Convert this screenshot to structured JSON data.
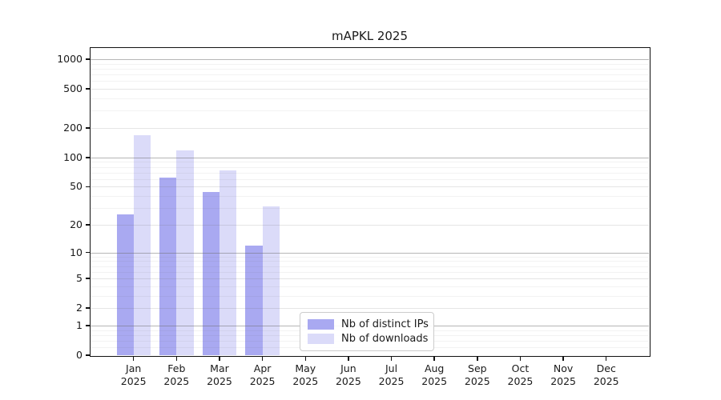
{
  "chart_data": {
    "type": "bar",
    "title": "mAPKL 2025",
    "categories": [
      "Jan",
      "Feb",
      "Mar",
      "Apr",
      "May",
      "Jun",
      "Jul",
      "Aug",
      "Sep",
      "Oct",
      "Nov",
      "Dec"
    ],
    "category_year": "2025",
    "series": [
      {
        "name": "Nb of distinct IPs",
        "color": "#a9a9f1",
        "values": [
          26,
          62,
          44,
          12,
          0,
          0,
          0,
          0,
          0,
          0,
          0,
          0
        ]
      },
      {
        "name": "Nb of downloads",
        "color": "#dbdbf9",
        "values": [
          170,
          118,
          74,
          31,
          0,
          0,
          0,
          0,
          0,
          0,
          0,
          0
        ]
      }
    ],
    "yaxis": {
      "scale": "log1p",
      "tick_values": [
        0,
        1,
        2,
        5,
        10,
        20,
        50,
        100,
        200,
        500,
        1000
      ],
      "tick_labels": [
        "0",
        "1",
        "2",
        "5",
        "10",
        "20",
        "50",
        "100",
        "200",
        "500",
        "1000"
      ],
      "ylim": [
        0,
        1300
      ]
    },
    "grid": true,
    "legend": {
      "position": "lower-center-inside",
      "entries": [
        "Nb of distinct IPs",
        "Nb of downloads"
      ]
    }
  }
}
